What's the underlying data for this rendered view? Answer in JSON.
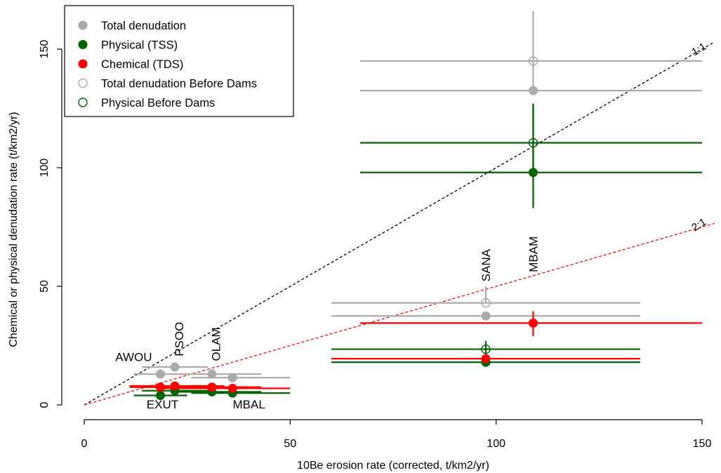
{
  "chart_data": {
    "type": "scatter",
    "xlabel": "10Be erosion rate (corrected, t/km2/yr)",
    "ylabel": "Chemical or physical denudation rate (t/km2/yr)",
    "xlim": [
      0,
      153
    ],
    "ylim": [
      -5,
      167
    ],
    "x_ticks": [
      0,
      50,
      100,
      150
    ],
    "y_ticks": [
      0,
      50,
      100,
      150
    ],
    "grid": false,
    "legend_position": "top-left",
    "reference_lines": [
      {
        "label": "1:1",
        "slope": 1,
        "color": "#000000"
      },
      {
        "label": "2:1",
        "slope": 0.5,
        "color": "#ff0000"
      }
    ],
    "series": [
      {
        "name": "Total denudation",
        "color": "#aaaaaa",
        "marker": "filled",
        "points": [
          {
            "x": 18.5,
            "y": 13,
            "xerr": [
              12,
              25
            ],
            "yerr": [
              13,
              13
            ]
          },
          {
            "x": 22,
            "y": 16,
            "xerr": [
              14,
              30
            ],
            "yerr": [
              16,
              16
            ]
          },
          {
            "x": 31,
            "y": 13,
            "xerr": [
              22,
              43
            ],
            "yerr": [
              13,
              13
            ]
          },
          {
            "x": 36,
            "y": 11.5,
            "xerr": [
              26,
              50
            ],
            "yerr": [
              11.5,
              11.5
            ]
          },
          {
            "x": 97.5,
            "y": 37.5,
            "xerr": [
              60,
              135
            ],
            "yerr": [
              37.5,
              37.5
            ]
          },
          {
            "x": 109,
            "y": 132.5,
            "xerr": [
              67,
              150
            ],
            "yerr": [
              132.5,
              132.5
            ]
          }
        ]
      },
      {
        "name": "Physical (TSS)",
        "color": "#006400",
        "marker": "filled",
        "points": [
          {
            "x": 18.5,
            "y": 4,
            "xerr": [
              12,
              25
            ],
            "yerr": [
              3,
              5
            ]
          },
          {
            "x": 22,
            "y": 6,
            "xerr": [
              14,
              30
            ],
            "yerr": [
              6,
              6
            ]
          },
          {
            "x": 31,
            "y": 5.5,
            "xerr": [
              22,
              43
            ],
            "yerr": [
              5.5,
              5.5
            ]
          },
          {
            "x": 36,
            "y": 5,
            "xerr": [
              26,
              50
            ],
            "yerr": [
              5,
              5
            ]
          },
          {
            "x": 97.5,
            "y": 18,
            "xerr": [
              60,
              135
            ],
            "yerr": [
              16,
              20
            ]
          },
          {
            "x": 109,
            "y": 98,
            "xerr": [
              67,
              150
            ],
            "yerr": [
              83,
              127
            ]
          }
        ]
      },
      {
        "name": "Chemical (TDS)",
        "color": "#ff0000",
        "marker": "filled",
        "points": [
          {
            "x": 18.5,
            "y": 7.5,
            "xerr": [
              11,
              26
            ],
            "yerr": [
              7.5,
              7.5
            ]
          },
          {
            "x": 22,
            "y": 8,
            "xerr": [
              11,
              34
            ],
            "yerr": [
              8,
              8
            ]
          },
          {
            "x": 31,
            "y": 7.5,
            "xerr": [
              13,
              43
            ],
            "yerr": [
              7.5,
              7.5
            ]
          },
          {
            "x": 36,
            "y": 7,
            "xerr": [
              18,
              50
            ],
            "yerr": [
              7,
              7
            ]
          },
          {
            "x": 97.5,
            "y": 19.5,
            "xerr": [
              60,
              135
            ],
            "yerr": [
              19.5,
              19.5
            ]
          },
          {
            "x": 109,
            "y": 34.5,
            "xerr": [
              67,
              150
            ],
            "yerr": [
              29,
              39.5
            ]
          }
        ]
      },
      {
        "name": "Total denudation Before Dams",
        "color": "#aaaaaa",
        "marker": "open",
        "points": [
          {
            "x": 97.5,
            "y": 43,
            "xerr": [
              60,
              135
            ],
            "yerr": [
              43,
              50
            ]
          },
          {
            "x": 109,
            "y": 145,
            "xerr": [
              67,
              150
            ],
            "yerr": [
              132,
              166
            ]
          }
        ]
      },
      {
        "name": "Physical Before Dams",
        "color": "#006400",
        "marker": "open",
        "points": [
          {
            "x": 97.5,
            "y": 23.5,
            "xerr": [
              60,
              135
            ],
            "yerr": [
              20,
              27
            ]
          },
          {
            "x": 109,
            "y": 110.5,
            "xerr": [
              67,
              150
            ],
            "yerr": [
              98,
              127
            ]
          }
        ]
      }
    ],
    "annotations": [
      {
        "text": "AWOU",
        "x": 12,
        "y": 18.5,
        "rotation": 0
      },
      {
        "text": "PSOO",
        "x": 23,
        "y": 20.5,
        "rotation": -90
      },
      {
        "text": "OLAM",
        "x": 32,
        "y": 18.5,
        "rotation": -90
      },
      {
        "text": "EXUT",
        "x": 19,
        "y": -1.5,
        "rotation": 0
      },
      {
        "text": "MBAL",
        "x": 40,
        "y": -1.5,
        "rotation": 0
      },
      {
        "text": "SANA",
        "x": 97.5,
        "y": 52,
        "rotation": -90
      },
      {
        "text": "MBAM",
        "x": 109,
        "y": 56,
        "rotation": -90
      }
    ]
  }
}
